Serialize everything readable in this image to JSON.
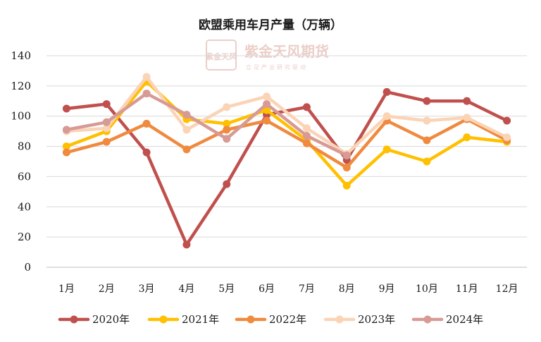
{
  "chart_data": {
    "type": "line",
    "title": "欧盟乘用车月产量（万辆）",
    "categories": [
      "1月",
      "2月",
      "3月",
      "4月",
      "5月",
      "6月",
      "7月",
      "8月",
      "9月",
      "10月",
      "11月",
      "12月"
    ],
    "yticks": [
      "0",
      "20",
      "40",
      "60",
      "80",
      "100",
      "120",
      "140"
    ],
    "ylim": [
      0,
      140
    ],
    "grid": "horizontal",
    "legend_position": "bottom",
    "series": [
      {
        "name": "2020年",
        "color": "#c0504d",
        "values": [
          105,
          108,
          76,
          15,
          55,
          101,
          106,
          71,
          116,
          110,
          110,
          97
        ]
      },
      {
        "name": "2021年",
        "color": "#ffc000",
        "values": [
          80,
          90,
          123,
          98,
          95,
          104,
          84,
          54,
          78,
          70,
          86,
          83
        ]
      },
      {
        "name": "2022年",
        "color": "#ef8a3f",
        "values": [
          76,
          83,
          95,
          78,
          91,
          97,
          82,
          66,
          97,
          84,
          98,
          84
        ]
      },
      {
        "name": "2023年",
        "color": "#fbd3b5",
        "values": [
          90,
          92,
          126,
          91,
          106,
          113,
          92,
          75,
          100,
          97,
          99,
          86
        ]
      },
      {
        "name": "2024年",
        "color": "#d79a95",
        "values": [
          91,
          96,
          115,
          101,
          85,
          108,
          87,
          74,
          null,
          null,
          null,
          null
        ]
      }
    ]
  },
  "watermark": {
    "logo_chars": "紫金天风",
    "name": "紫金天风期货",
    "tagline": "立足产业研究驱动"
  }
}
